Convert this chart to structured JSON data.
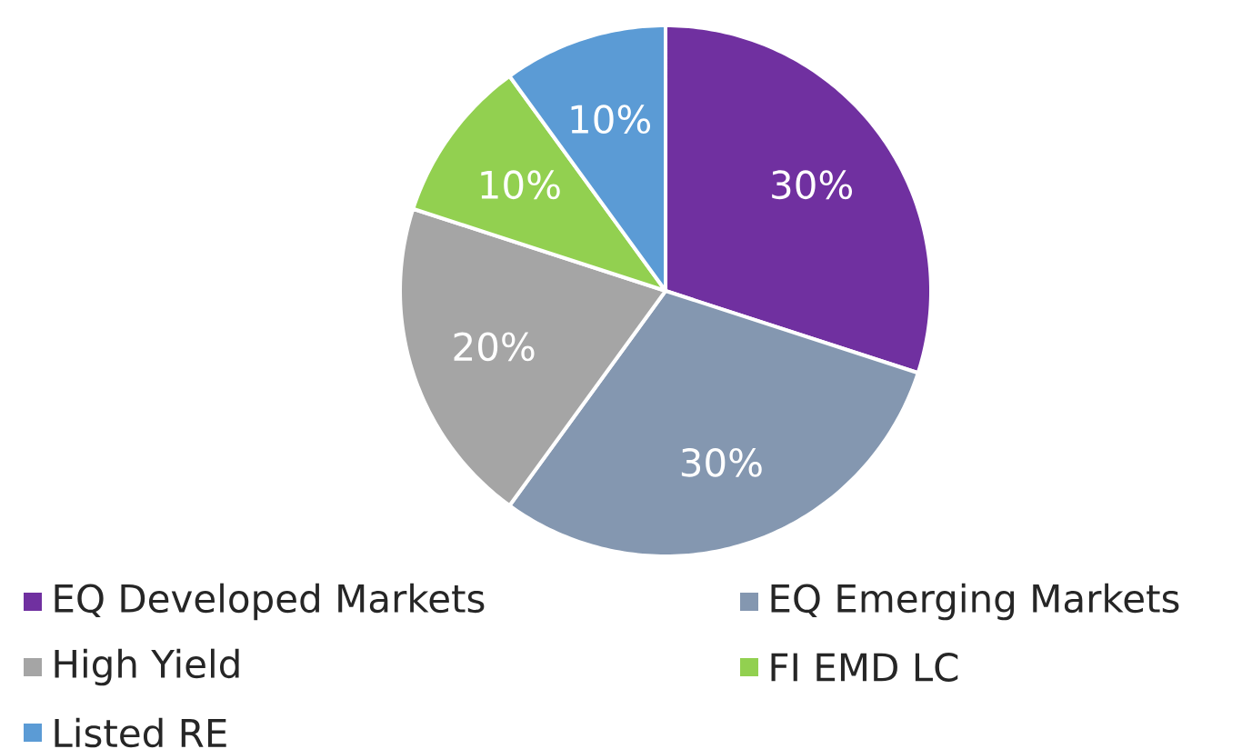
{
  "chart_data": {
    "type": "pie",
    "categories": [
      "EQ Developed Markets",
      "EQ Emerging Markets",
      "High Yield",
      "FI EMD LC",
      "Listed RE"
    ],
    "values": [
      30,
      30,
      20,
      10,
      10
    ],
    "value_labels": [
      "30%",
      "30%",
      "20%",
      "10%",
      "10%"
    ],
    "colors": [
      "#7030a0",
      "#8497b0",
      "#a5a5a5",
      "#92d050",
      "#5b9bd5"
    ],
    "legend": "bottom"
  }
}
